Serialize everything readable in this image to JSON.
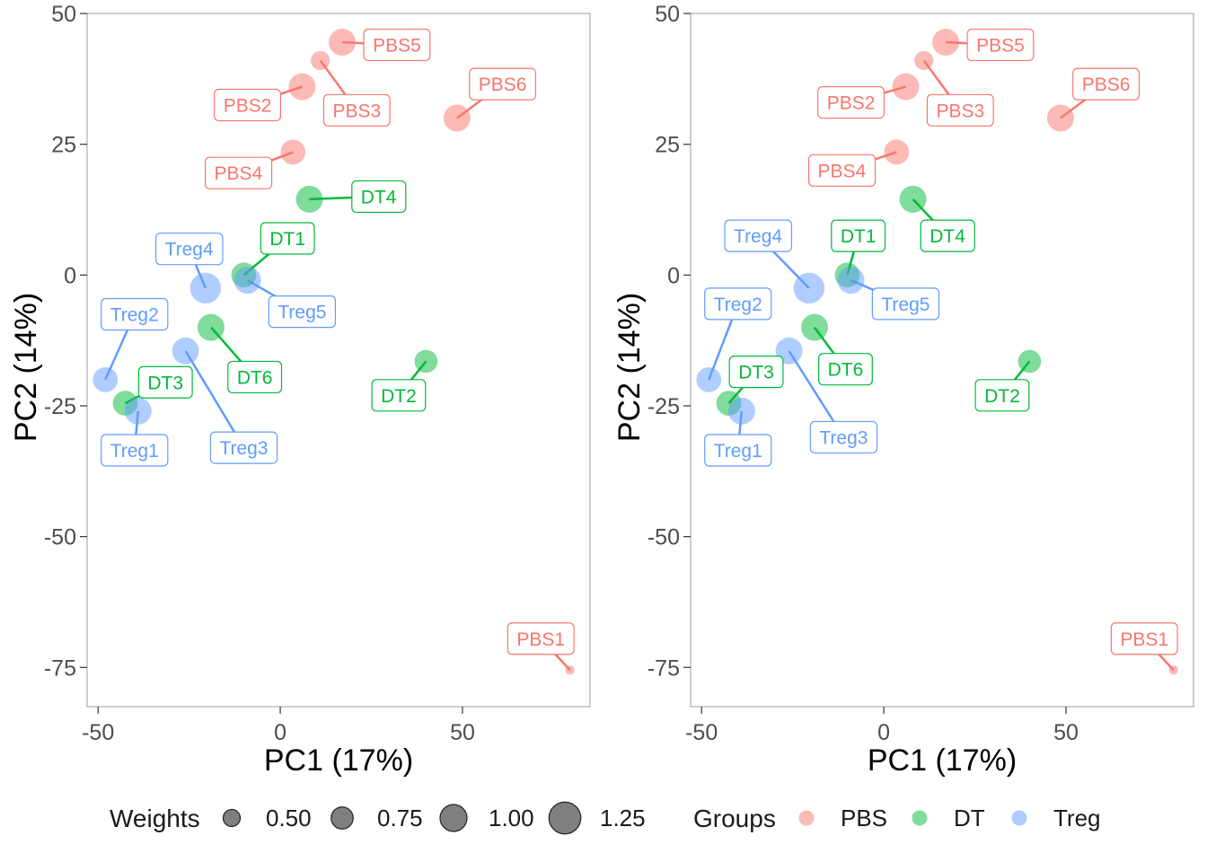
{
  "chart_data": [
    {
      "type": "scatter",
      "xlabel": "PC1 (17%)",
      "ylabel": "PC2 (14%)",
      "xlim": [
        -53,
        85
      ],
      "ylim": [
        -82.5,
        50
      ],
      "xticks": [
        -50,
        0,
        50
      ],
      "yticks": [
        50,
        25,
        0,
        -25,
        -50,
        -75
      ],
      "tick_labels_x": [
        "-50",
        "0",
        "50"
      ],
      "tick_labels_y": [
        "50",
        "25",
        "0",
        "-25",
        "-50",
        "-75"
      ],
      "grid": false,
      "points": [
        {
          "name": "PBS1",
          "group": "PBS",
          "x": 79.5,
          "y": -75.5,
          "weight": 0.1,
          "label_x": 71.5,
          "label_y": -69.5
        },
        {
          "name": "PBS2",
          "group": "PBS",
          "x": 6,
          "y": 36,
          "weight": 1.0,
          "label_x": -9,
          "label_y": 32.5
        },
        {
          "name": "PBS3",
          "group": "PBS",
          "x": 11,
          "y": 41,
          "weight": 0.6,
          "label_x": 21,
          "label_y": 31.5
        },
        {
          "name": "PBS4",
          "group": "PBS",
          "x": 3.5,
          "y": 23.5,
          "weight": 0.9,
          "label_x": -11.5,
          "label_y": 19.5
        },
        {
          "name": "PBS5",
          "group": "PBS",
          "x": 17,
          "y": 44.5,
          "weight": 1.0,
          "label_x": 32,
          "label_y": 44
        },
        {
          "name": "PBS6",
          "group": "PBS",
          "x": 48.5,
          "y": 30,
          "weight": 1.0,
          "label_x": 61,
          "label_y": 36.5
        },
        {
          "name": "DT1",
          "group": "DT",
          "x": -10,
          "y": 0,
          "weight": 0.9,
          "label_x": 2,
          "label_y": 7
        },
        {
          "name": "DT2",
          "group": "DT",
          "x": 40,
          "y": -16.5,
          "weight": 0.8,
          "label_x": 32.5,
          "label_y": -23
        },
        {
          "name": "DT3",
          "group": "DT",
          "x": -42.5,
          "y": -24.5,
          "weight": 0.9,
          "label_x": -31.5,
          "label_y": -20.5
        },
        {
          "name": "DT4",
          "group": "DT",
          "x": 8,
          "y": 14.5,
          "weight": 1.0,
          "label_x": 27,
          "label_y": 15
        },
        {
          "name": "DT6",
          "group": "DT",
          "x": -19,
          "y": -10,
          "weight": 1.0,
          "label_x": -7,
          "label_y": -19.5
        },
        {
          "name": "Treg1",
          "group": "Treg",
          "x": -39,
          "y": -26,
          "weight": 1.0,
          "label_x": -40,
          "label_y": -33.5
        },
        {
          "name": "Treg2",
          "group": "Treg",
          "x": -48,
          "y": -20,
          "weight": 0.9,
          "label_x": -40,
          "label_y": -7.5
        },
        {
          "name": "Treg3",
          "group": "Treg",
          "x": -26,
          "y": -14.5,
          "weight": 1.0,
          "label_x": -10,
          "label_y": -33
        },
        {
          "name": "Treg4",
          "group": "Treg",
          "x": -20.5,
          "y": -2.5,
          "weight": 1.2,
          "label_x": -25,
          "label_y": 5
        },
        {
          "name": "Treg5",
          "group": "Treg",
          "x": -9,
          "y": -1,
          "weight": 1.0,
          "label_x": 6,
          "label_y": -7
        }
      ]
    },
    {
      "type": "scatter",
      "xlabel": "PC1 (17%)",
      "ylabel": "PC2 (14%)",
      "xlim": [
        -53,
        85
      ],
      "ylim": [
        -82.5,
        50
      ],
      "xticks": [
        -50,
        0,
        50
      ],
      "yticks": [
        50,
        25,
        0,
        -25,
        -50,
        -75
      ],
      "tick_labels_x": [
        "-50",
        "0",
        "50"
      ],
      "tick_labels_y": [
        "50",
        "25",
        "0",
        "-25",
        "-50",
        "-75"
      ],
      "grid": false,
      "points": [
        {
          "name": "PBS1",
          "group": "PBS",
          "x": 79.5,
          "y": -75.5,
          "weight": 0.1,
          "label_x": 71.5,
          "label_y": -69.5
        },
        {
          "name": "PBS2",
          "group": "PBS",
          "x": 6,
          "y": 36,
          "weight": 1.0,
          "label_x": -9,
          "label_y": 33
        },
        {
          "name": "PBS3",
          "group": "PBS",
          "x": 11,
          "y": 41,
          "weight": 0.6,
          "label_x": 21,
          "label_y": 31.5
        },
        {
          "name": "PBS4",
          "group": "PBS",
          "x": 3.5,
          "y": 23.5,
          "weight": 0.9,
          "label_x": -11.5,
          "label_y": 20
        },
        {
          "name": "PBS5",
          "group": "PBS",
          "x": 17,
          "y": 44.5,
          "weight": 1.0,
          "label_x": 32,
          "label_y": 44
        },
        {
          "name": "PBS6",
          "group": "PBS",
          "x": 48.5,
          "y": 30,
          "weight": 1.0,
          "label_x": 61,
          "label_y": 36.5
        },
        {
          "name": "DT1",
          "group": "DT",
          "x": -10,
          "y": 0,
          "weight": 0.9,
          "label_x": -7,
          "label_y": 7.5
        },
        {
          "name": "DT2",
          "group": "DT",
          "x": 40,
          "y": -16.5,
          "weight": 0.8,
          "label_x": 32.5,
          "label_y": -23
        },
        {
          "name": "DT3",
          "group": "DT",
          "x": -42.5,
          "y": -24.5,
          "weight": 0.9,
          "label_x": -35,
          "label_y": -18.5
        },
        {
          "name": "DT4",
          "group": "DT",
          "x": 8,
          "y": 14.5,
          "weight": 1.0,
          "label_x": 17.5,
          "label_y": 7.5
        },
        {
          "name": "DT6",
          "group": "DT",
          "x": -19,
          "y": -10,
          "weight": 1.0,
          "label_x": -10.5,
          "label_y": -18
        },
        {
          "name": "Treg1",
          "group": "Treg",
          "x": -39,
          "y": -26,
          "weight": 1.0,
          "label_x": -40,
          "label_y": -33.5
        },
        {
          "name": "Treg2",
          "group": "Treg",
          "x": -48,
          "y": -20,
          "weight": 0.9,
          "label_x": -40,
          "label_y": -5.5
        },
        {
          "name": "Treg3",
          "group": "Treg",
          "x": -26,
          "y": -14.5,
          "weight": 1.0,
          "label_x": -11,
          "label_y": -31
        },
        {
          "name": "Treg4",
          "group": "Treg",
          "x": -20.5,
          "y": -2.5,
          "weight": 1.2,
          "label_x": -34.5,
          "label_y": 7.5
        },
        {
          "name": "Treg5",
          "group": "Treg",
          "x": -9,
          "y": -1,
          "weight": 1.0,
          "label_x": 6,
          "label_y": -5.5
        }
      ]
    }
  ],
  "groups": [
    {
      "name": "PBS",
      "color": "#F8766D"
    },
    {
      "name": "DT",
      "color": "#00BA38"
    },
    {
      "name": "Treg",
      "color": "#619CFF"
    }
  ],
  "legend": {
    "weights_title": "Weights",
    "weights": [
      {
        "value": 0.5,
        "label": "0.50"
      },
      {
        "value": 0.75,
        "label": "0.75"
      },
      {
        "value": 1.0,
        "label": "1.00"
      },
      {
        "value": 1.25,
        "label": "1.25"
      }
    ],
    "groups_title": "Groups",
    "groups": [
      "PBS",
      "DT",
      "Treg"
    ],
    "placement": "bottom"
  }
}
